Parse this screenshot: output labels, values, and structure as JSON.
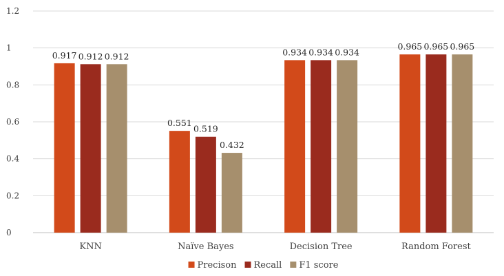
{
  "chart_data": {
    "type": "bar",
    "title": "",
    "xlabel": "",
    "ylabel": "",
    "categories": [
      "KNN",
      "Naïve Bayes",
      "Decision Tree",
      "Random Forest"
    ],
    "series": [
      {
        "name": "Precison",
        "color": "#D24A1A",
        "values": [
          0.917,
          0.551,
          0.934,
          0.965
        ]
      },
      {
        "name": "Recall",
        "color": "#9A2B1E",
        "values": [
          0.912,
          0.519,
          0.934,
          0.965
        ]
      },
      {
        "name": "F1 score",
        "color": "#A68F6D",
        "values": [
          0.912,
          0.432,
          0.934,
          0.965
        ]
      }
    ],
    "ylim": [
      0,
      1.2
    ],
    "yticks": [
      0,
      0.2,
      0.4,
      0.6,
      0.8,
      1,
      1.2
    ],
    "ytick_labels": [
      "0",
      "0.2",
      "0.4",
      "0.6",
      "0.8",
      "1",
      "1.2"
    ],
    "data_labels": [
      [
        "0.917",
        "0.551",
        "0.934",
        "0.965"
      ],
      [
        "0.912",
        "0.519",
        "0.934",
        "0.965"
      ],
      [
        "0.912",
        "0.432",
        "0.934",
        "0.965"
      ]
    ],
    "grid": true,
    "legend_position": "bottom"
  }
}
